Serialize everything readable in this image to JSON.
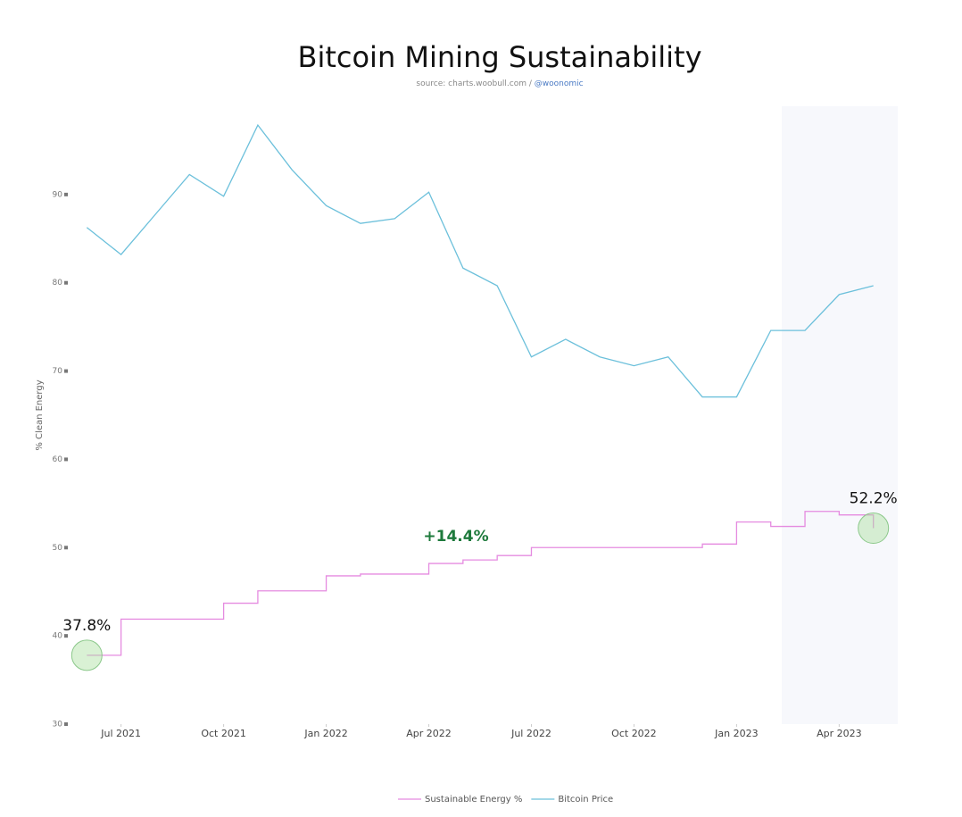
{
  "chart_data": {
    "type": "line",
    "title": "Bitcoin Mining Sustainability",
    "source": "source: charts.woobull.com /",
    "source_handle": "@woonomic",
    "y_label": "% Clean Energy",
    "x": [
      "2021-06",
      "2021-07",
      "2021-08",
      "2021-09",
      "2021-10",
      "2021-11",
      "2021-12",
      "2022-01",
      "2022-02",
      "2022-03",
      "2022-04",
      "2022-05",
      "2022-06",
      "2022-07",
      "2022-08",
      "2022-09",
      "2022-10",
      "2022-11",
      "2022-12",
      "2023-01",
      "2023-02",
      "2023-03",
      "2023-04",
      "2023-05"
    ],
    "xlim": [
      "2021-05",
      "2023-06"
    ],
    "xticks": [
      {
        "value": "2021-07",
        "label": "Jul 2021"
      },
      {
        "value": "2021-10",
        "label": "Oct 2021"
      },
      {
        "value": "2022-01",
        "label": "Jan 2022"
      },
      {
        "value": "2022-04",
        "label": "Apr 2022"
      },
      {
        "value": "2022-07",
        "label": "Jul 2022"
      },
      {
        "value": "2022-10",
        "label": "Oct 2022"
      },
      {
        "value": "2023-01",
        "label": "Jan 2023"
      },
      {
        "value": "2023-04",
        "label": "Apr 2023"
      }
    ],
    "ylim": [
      30,
      100
    ],
    "yticks": [
      30,
      40,
      50,
      60,
      70,
      80,
      90
    ],
    "y2lim": [
      -37500,
      67500
    ],
    "series": [
      {
        "name": "Sustainable Energy %",
        "color": "#e58be0",
        "step": true,
        "values": [
          37.8,
          41.9,
          41.9,
          41.9,
          43.7,
          45.1,
          45.1,
          46.8,
          47.0,
          47.0,
          48.2,
          48.6,
          49.1,
          50.0,
          50.0,
          50.0,
          50.0,
          50.0,
          50.4,
          52.9,
          52.4,
          54.1,
          53.7,
          52.2
        ]
      },
      {
        "name": "Bitcoin Price",
        "color": "#6cc0db",
        "axis": "y2",
        "values": [
          46900,
          42300,
          49100,
          55900,
          52200,
          64300,
          56700,
          50600,
          47600,
          48400,
          52900,
          40000,
          37000,
          24900,
          27900,
          24900,
          23400,
          24900,
          18100,
          18100,
          29400,
          29400,
          35500,
          37000
        ]
      }
    ],
    "annotations": [
      {
        "text": "37.8%",
        "series": 0,
        "point": 0
      },
      {
        "text": "52.2%",
        "series": 0,
        "point": 23
      },
      {
        "text": "+14.4%",
        "color": "#1e7a3c"
      }
    ]
  }
}
